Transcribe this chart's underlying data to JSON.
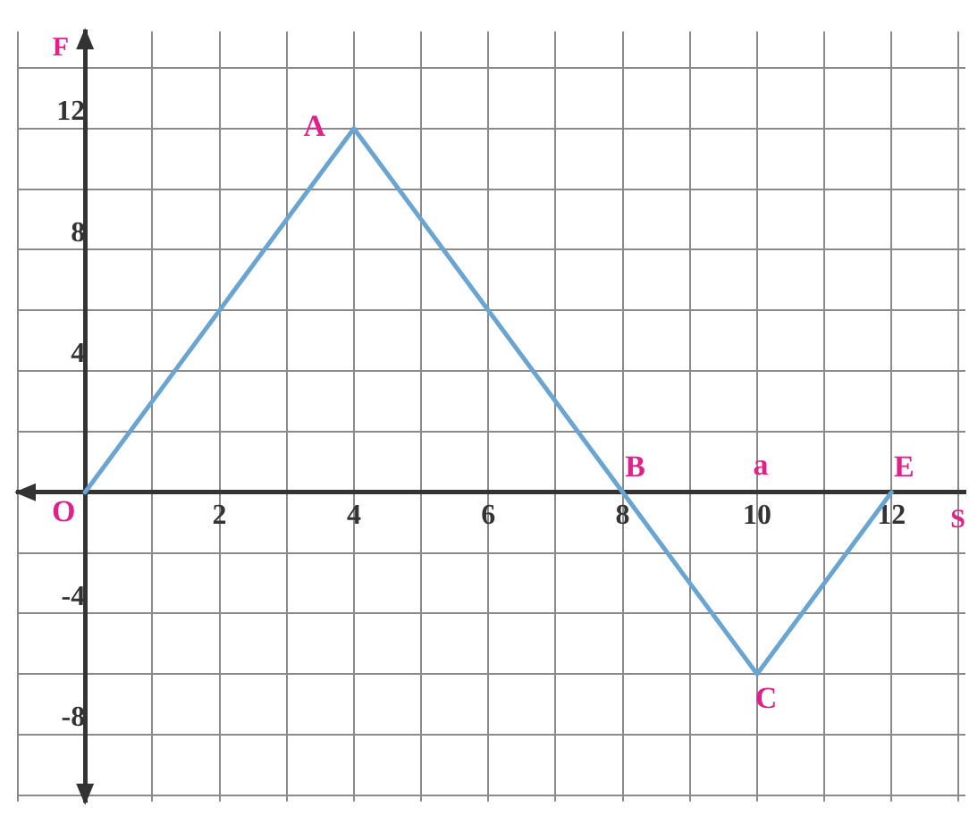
{
  "chart_data": {
    "type": "line",
    "xlabel": "S",
    "ylabel": "F",
    "x": [
      0,
      4,
      8,
      10,
      12
    ],
    "series": [
      {
        "color": "#6aa5d2",
        "values": [
          0,
          12,
          0,
          -6,
          0
        ]
      }
    ],
    "xlim": [
      -1,
      13.1
    ],
    "ylim": [
      -10.2,
      15.2
    ],
    "xticks": [
      {
        "value": -1,
        "label": null
      },
      {
        "value": 0,
        "label": null
      },
      {
        "value": 1,
        "label": null
      },
      2,
      {
        "value": 3,
        "label": null
      },
      4,
      {
        "value": 5,
        "label": null
      },
      6,
      {
        "value": 7,
        "label": null
      },
      8,
      {
        "value": 9,
        "label": null
      },
      10,
      {
        "value": 11,
        "label": null
      },
      12,
      {
        "value": 13,
        "label": null
      }
    ],
    "yticks": [
      {
        "value": -10,
        "label": null
      },
      -8,
      {
        "value": -6,
        "label": null
      },
      -4,
      {
        "value": -2,
        "label": null
      },
      {
        "value": 0,
        "label": null
      },
      {
        "value": 2,
        "label": null
      },
      4,
      {
        "value": 6,
        "label": null
      },
      8,
      {
        "value": 10,
        "label": null
      },
      12,
      {
        "value": 14,
        "label": null
      }
    ],
    "grid": true,
    "legend": false,
    "marker": "none",
    "line_style": "solid",
    "annotations": [
      {
        "text": "O",
        "x": 0,
        "y": 0
      },
      {
        "text": "A",
        "x": 4,
        "y": 12
      },
      {
        "text": "B",
        "x": 8,
        "y": 0
      },
      "a",
      {
        "text": "C",
        "x": 10,
        "y": -6
      },
      {
        "text": "E",
        "x": 12,
        "y": 0
      }
    ]
  }
}
